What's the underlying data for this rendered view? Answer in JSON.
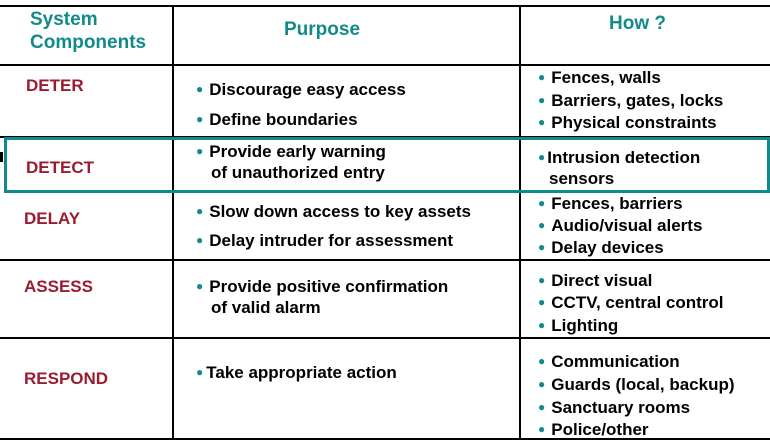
{
  "colors": {
    "header": "#138a8a",
    "component": "#9b1b30",
    "highlight": "#138a8a",
    "bullet": "#138a8a"
  },
  "headers": {
    "components_line1": "System",
    "components_line2": "Components",
    "purpose": "Purpose",
    "how": "How ?"
  },
  "rows": [
    {
      "component": "DETER",
      "purpose": [
        "Discourage easy access",
        "Define boundaries"
      ],
      "how": [
        "Fences, walls",
        "Barriers, gates, locks",
        "Physical  constraints"
      ]
    },
    {
      "component": "DETECT",
      "purpose": [
        "Provide early warning",
        "of unauthorized entry"
      ],
      "how": [
        "Intrusion detection",
        "sensors"
      ]
    },
    {
      "component": "DELAY",
      "purpose": [
        "Slow down access to key assets",
        "Delay intruder for assessment"
      ],
      "how": [
        "Fences, barriers",
        "Audio/visual alerts",
        "Delay devices"
      ]
    },
    {
      "component": "ASSESS",
      "purpose": [
        "Provide positive confirmation",
        "of valid alarm"
      ],
      "how": [
        "Direct visual",
        "CCTV, central control",
        "Lighting"
      ]
    },
    {
      "component": "RESPOND",
      "purpose": [
        "Take appropriate action"
      ],
      "how": [
        "Communication",
        "Guards (local, backup)",
        "Sanctuary rooms",
        "Police/other"
      ]
    }
  ]
}
